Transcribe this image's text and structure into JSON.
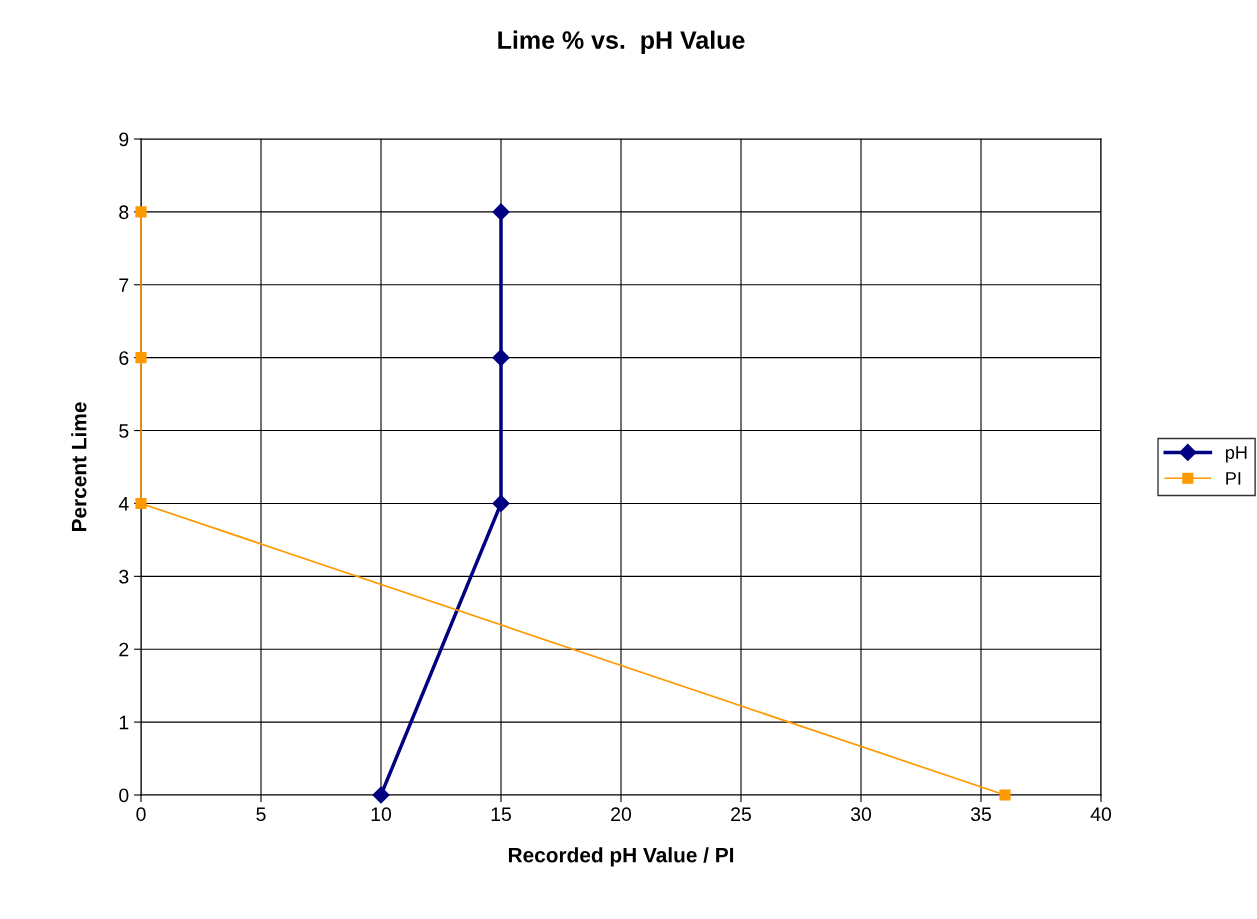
{
  "chart_data": {
    "type": "line",
    "title": "Lime % vs.  pH Value",
    "xlabel": "Recorded pH Value / PI",
    "ylabel": "Percent Lime",
    "series": [
      {
        "name": "pH",
        "color": "#000080",
        "x": [
          10,
          15,
          15,
          15
        ],
        "values": [
          0,
          4,
          6,
          8
        ],
        "marker": "diamond"
      },
      {
        "name": "PI",
        "color": "#ff9900",
        "x": [
          36,
          0,
          0,
          0
        ],
        "values": [
          0,
          4,
          6,
          8
        ],
        "marker": "square"
      }
    ],
    "xlim": [
      0,
      40
    ],
    "xticks": [
      0,
      5,
      10,
      15,
      20,
      25,
      30,
      35,
      40
    ],
    "ylim": [
      0,
      9
    ],
    "yticks": [
      0,
      1,
      2,
      3,
      4,
      5,
      6,
      7,
      8,
      9
    ],
    "grid": true,
    "legend": "right",
    "line_style": "solid"
  }
}
